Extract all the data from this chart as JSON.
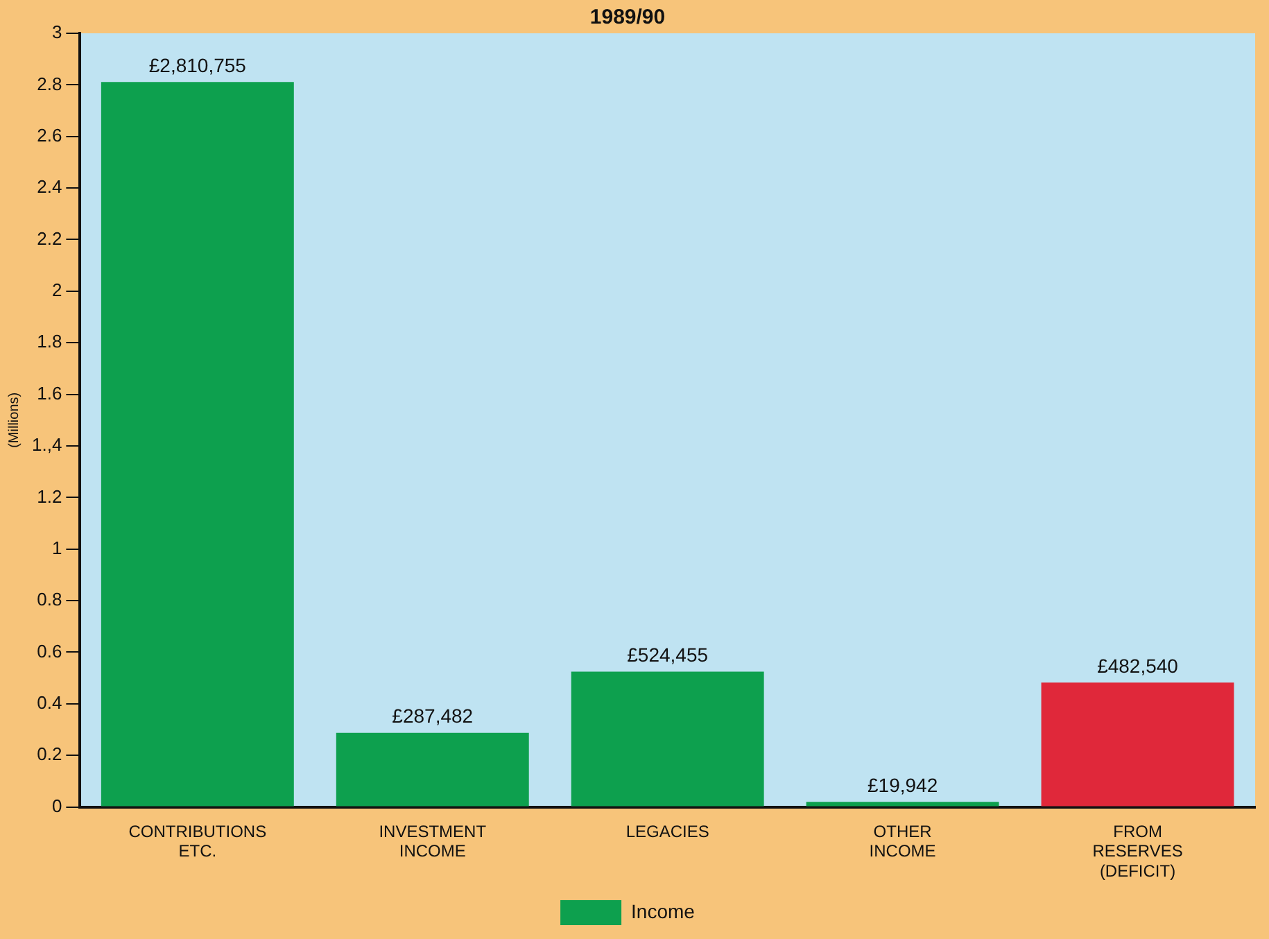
{
  "chart_data": {
    "type": "bar",
    "title": "1989/90",
    "ylabel": "(Millions)",
    "categories": [
      "CONTRIBUTIONS ETC.",
      "INVESTMENT INCOME",
      "LEGACIES",
      "OTHER INCOME",
      "FROM RESERVES (DEFICIT)"
    ],
    "series": [
      {
        "name": "Income",
        "color": "#0da04e",
        "colors": [
          "#0da04e",
          "#0da04e",
          "#0da04e",
          "#0da04e",
          "#e0283a"
        ],
        "values": [
          2.810755,
          0.287482,
          0.524455,
          0.019942,
          0.48254
        ]
      }
    ],
    "annotations": [
      {
        "text": "£2,810,755",
        "x": "CONTRIBUTIONS ETC.",
        "y": 2.810755
      },
      {
        "text": "£287,482",
        "x": "INVESTMENT INCOME",
        "y": 0.287482
      },
      {
        "text": "£524,455",
        "x": "LEGACIES",
        "y": 0.524455
      },
      {
        "text": "£19,942",
        "x": "OTHER INCOME",
        "y": 0.019942
      },
      {
        "text": "£482,540",
        "x": "FROM RESERVES (DEFICIT)",
        "y": 0.48254
      }
    ],
    "ylim": [
      0,
      3
    ],
    "yticks": [
      0,
      0.2,
      0.4,
      0.6,
      0.8,
      1,
      1.2,
      {
        "value": 1.4,
        "label": "1.,4"
      },
      1.6,
      1.8,
      2,
      2.2,
      2.4,
      2.6,
      2.8,
      3
    ],
    "legend": "bottom",
    "grid": false
  }
}
